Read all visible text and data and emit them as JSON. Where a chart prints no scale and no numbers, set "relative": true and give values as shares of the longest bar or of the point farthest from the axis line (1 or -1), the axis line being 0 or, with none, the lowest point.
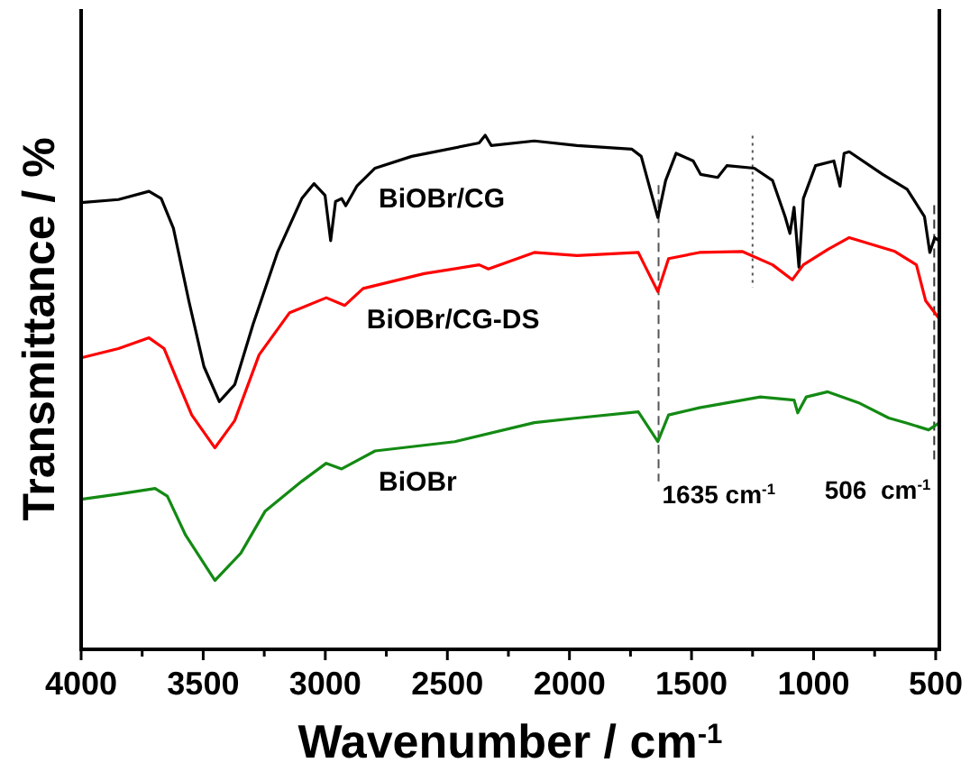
{
  "chart_data": {
    "type": "line",
    "relative": true,
    "xlabel": "Wavenumber / cm$^{-1}$",
    "ylabel": "Transmittance / %",
    "xlim": [
      4000,
      485
    ],
    "xticks": [
      4000,
      {
        "value": 3750,
        "label": null
      },
      3500,
      {
        "value": 3250,
        "label": null
      },
      3000,
      {
        "value": 2750,
        "label": null
      },
      2500,
      {
        "value": 2250,
        "label": null
      },
      2000,
      {
        "value": 1750,
        "label": null
      },
      1500,
      {
        "value": 1250,
        "label": null
      },
      1000,
      {
        "value": 750,
        "label": null
      },
      500
    ],
    "grid": false,
    "legend": false,
    "line_style": "solid",
    "marker": "none",
    "ref_lines": [
      {
        "axis": "x",
        "value": 1635,
        "label": "1635 cm$^{-1}$",
        "color": "#555555",
        "line_style": "dashed"
      },
      {
        "axis": "x",
        "value": 1250,
        "label": null,
        "color": "#555555",
        "line_style": "dotted"
      },
      {
        "axis": "x",
        "value": 506,
        "label": "506  cm$^{-1}$",
        "color": "#333333",
        "line_style": "dashed"
      }
    ],
    "series": [
      {
        "name": "BiOBr/CG",
        "color": "#000000",
        "x": [
          4000,
          3847,
          3722,
          3672,
          3622,
          3559,
          3497,
          3434,
          3371,
          3296,
          3196,
          3096,
          3046,
          3001,
          2978,
          2958,
          2933,
          2916,
          2871,
          2796,
          2646,
          2370,
          2345,
          2320,
          2144,
          1969,
          1744,
          1706,
          1638,
          1606,
          1563,
          1493,
          1463,
          1393,
          1355,
          1243,
          1168,
          1117,
          1097,
          1080,
          1060,
          1042,
          992,
          917,
          892,
          875,
          854,
          717,
          617,
          546,
          524,
          504,
          487
        ],
        "values": [
          0.869,
          0.875,
          0.891,
          0.877,
          0.819,
          0.678,
          0.55,
          0.482,
          0.515,
          0.632,
          0.772,
          0.877,
          0.906,
          0.883,
          0.795,
          0.871,
          0.877,
          0.863,
          0.901,
          0.936,
          0.959,
          0.985,
          1,
          0.98,
          0.989,
          0.98,
          0.973,
          0.959,
          0.84,
          0.912,
          0.965,
          0.95,
          0.924,
          0.918,
          0.941,
          0.936,
          0.912,
          0.842,
          0.809,
          0.86,
          0.743,
          0.877,
          0.941,
          0.95,
          0.901,
          0.965,
          0.968,
          0.924,
          0.895,
          0.842,
          0.772,
          0.801,
          0.795
        ]
      },
      {
        "name": "BiOBr/CG-DS",
        "color": "#ff0000",
        "x": [
          4000,
          3847,
          3722,
          3660,
          3609,
          3547,
          3452,
          3371,
          3271,
          3146,
          2996,
          2920,
          2845,
          2595,
          2370,
          2332,
          2144,
          1969,
          1718,
          1693,
          1638,
          1594,
          1468,
          1293,
          1168,
          1087,
          1042,
          942,
          854,
          667,
          579,
          541,
          485
        ],
        "values": [
          0.567,
          0.585,
          0.606,
          0.585,
          0.526,
          0.456,
          0.392,
          0.445,
          0.573,
          0.655,
          0.684,
          0.669,
          0.702,
          0.731,
          0.748,
          0.74,
          0.772,
          0.766,
          0.772,
          0.748,
          0.696,
          0.76,
          0.772,
          0.774,
          0.748,
          0.719,
          0.748,
          0.778,
          0.801,
          0.774,
          0.748,
          0.678,
          0.643
        ]
      },
      {
        "name": "BiOBr",
        "color": "#138a13",
        "x": [
          4000,
          3847,
          3697,
          3647,
          3572,
          3452,
          3346,
          3246,
          3096,
          2996,
          2933,
          2796,
          2470,
          2144,
          1969,
          1718,
          1638,
          1594,
          1468,
          1218,
          1080,
          1065,
          1030,
          942,
          817,
          692,
          617,
          529,
          487
        ],
        "values": [
          0.292,
          0.302,
          0.313,
          0.298,
          0.222,
          0.134,
          0.187,
          0.269,
          0.327,
          0.362,
          0.351,
          0.386,
          0.404,
          0.441,
          0.45,
          0.462,
          0.404,
          0.456,
          0.47,
          0.491,
          0.485,
          0.46,
          0.491,
          0.501,
          0.48,
          0.45,
          0.44,
          0.427,
          0.44
        ]
      }
    ]
  }
}
